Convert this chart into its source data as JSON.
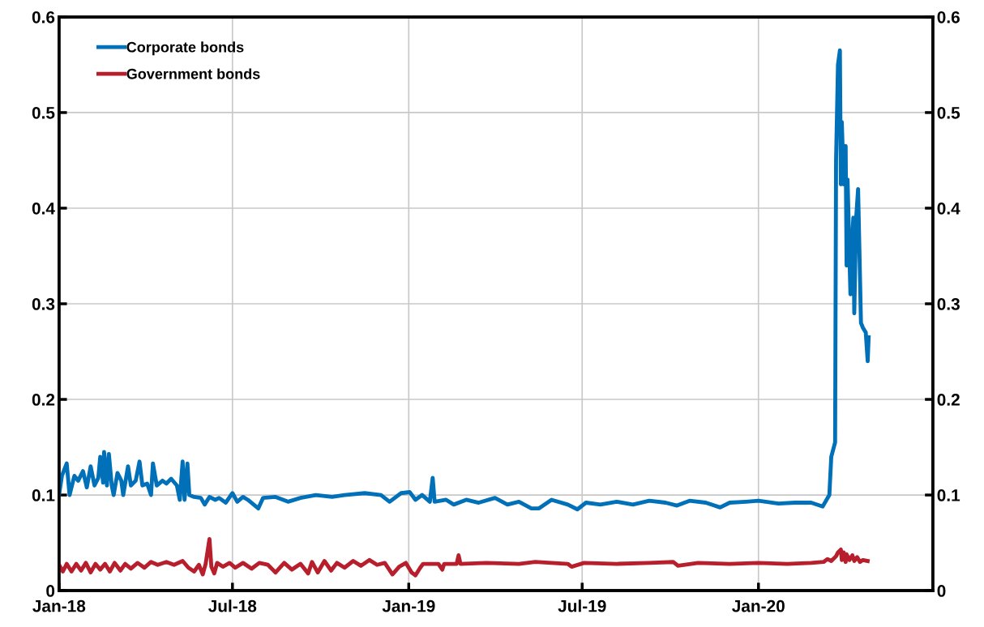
{
  "chart_data": {
    "type": "line",
    "series": [
      {
        "name": "Corporate bonds",
        "color": "#0070b8",
        "x": [
          "2018-01-01",
          "2018-01-04",
          "2018-01-09",
          "2018-01-12",
          "2018-01-17",
          "2018-01-21",
          "2018-01-26",
          "2018-01-30",
          "2018-02-03",
          "2018-02-07",
          "2018-02-11",
          "2018-02-13",
          "2018-02-16",
          "2018-02-17",
          "2018-02-20",
          "2018-02-22",
          "2018-02-25",
          "2018-02-27",
          "2018-03-03",
          "2018-03-07",
          "2018-03-09",
          "2018-03-14",
          "2018-03-17",
          "2018-03-22",
          "2018-03-26",
          "2018-03-29",
          "2018-04-03",
          "2018-04-07",
          "2018-04-09",
          "2018-04-13",
          "2018-04-19",
          "2018-04-23",
          "2018-04-28",
          "2018-05-04",
          "2018-05-07",
          "2018-05-10",
          "2018-05-12",
          "2018-05-15",
          "2018-05-17",
          "2018-05-22",
          "2018-05-29",
          "2018-06-02",
          "2018-06-07",
          "2018-06-13",
          "2018-06-17",
          "2018-06-24",
          "2018-07-01",
          "2018-07-06",
          "2018-07-12",
          "2018-07-17",
          "2018-07-28",
          "2018-08-02",
          "2018-08-15",
          "2018-08-28",
          "2018-09-10",
          "2018-09-26",
          "2018-10-13",
          "2018-10-26",
          "2018-11-16",
          "2018-12-03",
          "2018-12-12",
          "2018-12-24",
          "2019-01-02",
          "2019-01-08",
          "2019-01-15",
          "2019-01-23",
          "2019-01-26",
          "2019-01-28",
          "2019-02-09",
          "2019-02-17",
          "2019-03-02",
          "2019-03-15",
          "2019-04-01",
          "2019-04-14",
          "2019-04-26",
          "2019-05-09",
          "2019-05-17",
          "2019-05-30",
          "2019-06-16",
          "2019-06-26",
          "2019-07-05",
          "2019-07-20",
          "2019-08-06",
          "2019-08-23",
          "2019-09-09",
          "2019-09-26",
          "2019-10-08",
          "2019-10-21",
          "2019-11-07",
          "2019-11-22",
          "2019-12-02",
          "2019-12-19",
          "2020-01-01",
          "2020-01-22",
          "2020-02-08",
          "2020-02-25",
          "2020-03-08",
          "2020-03-15",
          "2020-03-17",
          "2020-03-21",
          "2020-03-22",
          "2020-03-24",
          "2020-03-26",
          "2020-03-27",
          "2020-03-28",
          "2020-03-30",
          "2020-04-01",
          "2020-04-02",
          "2020-04-03",
          "2020-04-05",
          "2020-04-06",
          "2020-04-08",
          "2020-04-09",
          "2020-04-10",
          "2020-04-12",
          "2020-04-14",
          "2020-04-17",
          "2020-04-19",
          "2020-04-22",
          "2020-04-24",
          "2020-04-25"
        ],
        "values": [
          0.1,
          0.12,
          0.133,
          0.1,
          0.12,
          0.115,
          0.125,
          0.108,
          0.13,
          0.11,
          0.118,
          0.14,
          0.113,
          0.145,
          0.11,
          0.143,
          0.11,
          0.1,
          0.123,
          0.115,
          0.1,
          0.13,
          0.11,
          0.115,
          0.135,
          0.11,
          0.112,
          0.1,
          0.133,
          0.11,
          0.115,
          0.112,
          0.117,
          0.11,
          0.095,
          0.135,
          0.095,
          0.133,
          0.1,
          0.098,
          0.097,
          0.09,
          0.098,
          0.095,
          0.097,
          0.092,
          0.102,
          0.093,
          0.098,
          0.095,
          0.086,
          0.097,
          0.098,
          0.093,
          0.097,
          0.1,
          0.098,
          0.1,
          0.102,
          0.1,
          0.093,
          0.102,
          0.103,
          0.095,
          0.1,
          0.093,
          0.118,
          0.093,
          0.095,
          0.09,
          0.095,
          0.092,
          0.097,
          0.09,
          0.093,
          0.086,
          0.086,
          0.095,
          0.09,
          0.085,
          0.092,
          0.09,
          0.093,
          0.09,
          0.094,
          0.092,
          0.089,
          0.094,
          0.092,
          0.087,
          0.092,
          0.093,
          0.094,
          0.091,
          0.092,
          0.092,
          0.088,
          0.1,
          0.14,
          0.155,
          0.45,
          0.55,
          0.565,
          0.425,
          0.49,
          0.425,
          0.465,
          0.34,
          0.43,
          0.35,
          0.31,
          0.37,
          0.39,
          0.29,
          0.39,
          0.42,
          0.28,
          0.275,
          0.27,
          0.24,
          0.265
        ]
      },
      {
        "name": "Government bonds",
        "color": "#b81f2d",
        "x": [
          "2018-01-01",
          "2018-01-05",
          "2018-01-09",
          "2018-01-14",
          "2018-01-19",
          "2018-01-24",
          "2018-01-29",
          "2018-02-03",
          "2018-02-08",
          "2018-02-13",
          "2018-02-18",
          "2018-02-23",
          "2018-02-28",
          "2018-03-06",
          "2018-03-11",
          "2018-03-17",
          "2018-03-24",
          "2018-03-31",
          "2018-04-07",
          "2018-04-14",
          "2018-04-23",
          "2018-05-01",
          "2018-05-10",
          "2018-05-16",
          "2018-05-22",
          "2018-05-27",
          "2018-05-31",
          "2018-06-03",
          "2018-06-07",
          "2018-06-09",
          "2018-06-12",
          "2018-06-15",
          "2018-06-21",
          "2018-06-28",
          "2018-07-04",
          "2018-07-12",
          "2018-07-21",
          "2018-07-29",
          "2018-08-07",
          "2018-08-15",
          "2018-08-24",
          "2018-09-01",
          "2018-09-10",
          "2018-09-18",
          "2018-09-22",
          "2018-09-28",
          "2018-10-05",
          "2018-10-12",
          "2018-10-18",
          "2018-10-26",
          "2018-11-04",
          "2018-11-12",
          "2018-11-21",
          "2018-11-29",
          "2018-12-07",
          "2018-12-15",
          "2018-12-22",
          "2018-12-29",
          "2019-01-04",
          "2019-01-08",
          "2019-01-13",
          "2019-01-16",
          "2019-02-01",
          "2019-02-05",
          "2019-02-07",
          "2019-02-20",
          "2019-02-22",
          "2019-02-24",
          "2019-03-23",
          "2019-04-26",
          "2019-05-13",
          "2019-06-16",
          "2019-06-20",
          "2019-07-03",
          "2019-08-06",
          "2019-09-09",
          "2019-10-04",
          "2019-10-09",
          "2019-10-30",
          "2019-12-02",
          "2020-01-01",
          "2020-01-31",
          "2020-02-25",
          "2020-03-09",
          "2020-03-13",
          "2020-03-17",
          "2020-03-22",
          "2020-03-24",
          "2020-03-27",
          "2020-03-28",
          "2020-03-30",
          "2020-04-01",
          "2020-04-02",
          "2020-04-05",
          "2020-04-08",
          "2020-04-10",
          "2020-04-13",
          "2020-04-16",
          "2020-04-19",
          "2020-04-24"
        ],
        "values": [
          0.027,
          0.02,
          0.028,
          0.02,
          0.028,
          0.021,
          0.029,
          0.019,
          0.028,
          0.022,
          0.028,
          0.02,
          0.029,
          0.021,
          0.028,
          0.023,
          0.029,
          0.024,
          0.03,
          0.027,
          0.03,
          0.027,
          0.031,
          0.024,
          0.02,
          0.027,
          0.017,
          0.028,
          0.054,
          0.025,
          0.018,
          0.029,
          0.025,
          0.029,
          0.024,
          0.029,
          0.023,
          0.029,
          0.027,
          0.019,
          0.029,
          0.022,
          0.028,
          0.018,
          0.03,
          0.019,
          0.031,
          0.021,
          0.029,
          0.024,
          0.031,
          0.026,
          0.032,
          0.027,
          0.029,
          0.017,
          0.025,
          0.029,
          0.019,
          0.016,
          0.024,
          0.028,
          0.028,
          0.022,
          0.028,
          0.028,
          0.037,
          0.028,
          0.029,
          0.028,
          0.03,
          0.028,
          0.025,
          0.029,
          0.028,
          0.029,
          0.03,
          0.026,
          0.029,
          0.028,
          0.029,
          0.028,
          0.029,
          0.03,
          0.033,
          0.031,
          0.036,
          0.04,
          0.043,
          0.032,
          0.04,
          0.03,
          0.038,
          0.032,
          0.037,
          0.031,
          0.035,
          0.03,
          0.032,
          0.031
        ]
      }
    ],
    "xlim": [
      "2018-01-01",
      "2020-07-01"
    ],
    "xticks": [
      {
        "value": "2018-01-01",
        "label": "Jan-18"
      },
      {
        "value": "2018-07-01",
        "label": "Jul-18"
      },
      {
        "value": "2019-01-01",
        "label": "Jan-19"
      },
      {
        "value": "2019-07-01",
        "label": "Jul-19"
      },
      {
        "value": "2020-01-01",
        "label": "Jan-20"
      }
    ],
    "ylim": [
      0,
      0.6
    ],
    "yticks": [
      0,
      0.1,
      0.2,
      0.3,
      0.4,
      0.5,
      0.6
    ],
    "y2lim": [
      0,
      0.6
    ],
    "y2ticks": [
      0,
      0.1,
      0.2,
      0.3,
      0.4,
      0.5,
      0.6
    ],
    "grid": true,
    "legend": "top left",
    "marker": "none",
    "line_style": "solid"
  }
}
